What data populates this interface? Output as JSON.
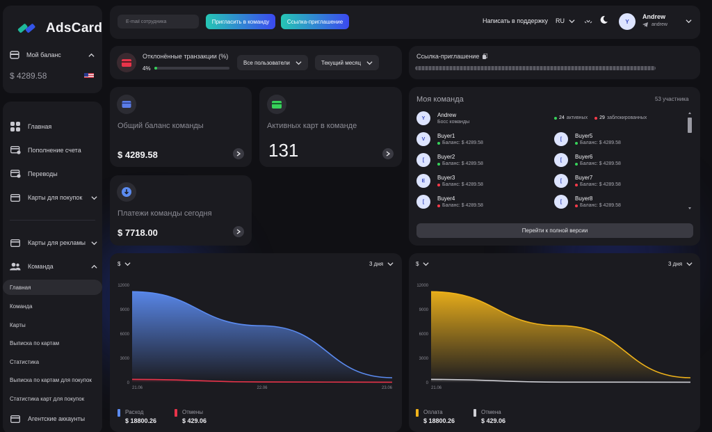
{
  "brand": {
    "name": "AdsCard"
  },
  "balance": {
    "label": "Мой баланс",
    "value": "$ 4289.58"
  },
  "nav": {
    "main": {
      "label": "Главная"
    },
    "topup": {
      "label": "Пополнение счета"
    },
    "transfers": {
      "label": "Переводы"
    },
    "cards_purchase": {
      "label": "Карты для покупок"
    },
    "cards_ads": {
      "label": "Карты для рекламы"
    },
    "team": {
      "label": "Команда"
    },
    "team_sub": [
      {
        "label": "Главная"
      },
      {
        "label": "Команда"
      },
      {
        "label": "Карты"
      },
      {
        "label": "Выписка по картам"
      },
      {
        "label": "Статистика"
      },
      {
        "label": "Выписка по картам для покупок"
      },
      {
        "label": "Статистика карт для покупок"
      }
    ],
    "agency": {
      "label": "Агентские аккаунты"
    }
  },
  "header": {
    "email_placeholder": "E-mail сотрудника",
    "invite_btn": "Пригласить в команду",
    "invite_link_btn": "Ссылка-приглашение",
    "support": "Написать в поддержку",
    "lang": "RU",
    "user": {
      "name": "Andrew",
      "login": "andrew",
      "initial": "Y"
    }
  },
  "declined": {
    "title": "Отклонённые транзакции (%)",
    "percent_text": "4%",
    "percent": 4,
    "filter_users": "Все пользователи",
    "filter_period": "Текущий месяц"
  },
  "invite_link": {
    "title": "Ссылка-приглашение"
  },
  "cards": {
    "team_balance": {
      "title": "Общий баланс команды",
      "value": "$ 4289.58"
    },
    "active_cards": {
      "title": "Активных карт в команде",
      "value": "131"
    },
    "payments_today": {
      "title": "Платежи команды сегодня",
      "value": "$ 7718.00"
    }
  },
  "team": {
    "title": "Моя команда",
    "count": "53 участника",
    "active_count": "24",
    "active_label": "активных",
    "blocked_count": "29",
    "blocked_label": "заблокированных",
    "owner": {
      "name": "Andrew",
      "role": "Босс команды",
      "initial": "Y"
    },
    "members": [
      {
        "name": "Buyer1",
        "balance": "Баланс: $ 4289.58",
        "initial": "V",
        "status": "active"
      },
      {
        "name": "Buyer5",
        "balance": "Баланс: $ 4289.58",
        "initial": "[",
        "status": "active"
      },
      {
        "name": "Buyer2",
        "balance": "Баланс: $ 4289.58",
        "initial": "[",
        "status": "active"
      },
      {
        "name": "Buyer6",
        "balance": "Баланс: $ 4289.58",
        "initial": "[",
        "status": "active"
      },
      {
        "name": "Buyer3",
        "balance": "Баланс: $ 4289.58",
        "initial": "E",
        "status": "blocked"
      },
      {
        "name": "Buyer7",
        "balance": "Баланс: $ 4289.58",
        "initial": "[",
        "status": "blocked"
      },
      {
        "name": "Buyer4",
        "balance": "Баланс: $ 4289.58",
        "initial": "[",
        "status": "blocked"
      },
      {
        "name": "Buyer8",
        "balance": "Баланс: $ 4289.58",
        "initial": "[",
        "status": "blocked"
      }
    ],
    "full_version_btn": "Перейти к полной версии"
  },
  "colors": {
    "accent_green": "#37d25a",
    "blocked_red": "#ff3b4a",
    "series_blue": "#5b8bf0",
    "series_red": "#e8344a",
    "series_gold": "#f0b31a",
    "series_white": "#cfcfd5"
  },
  "chart_data": [
    {
      "type": "area",
      "currency_selector": "$",
      "period_selector": "3 дня",
      "x": [
        "21.06",
        "22.06",
        "23.06"
      ],
      "ylim": [
        0,
        12000
      ],
      "yticks": [
        "0",
        "3000",
        "6000",
        "9000",
        "12000"
      ],
      "grid": false,
      "series": [
        {
          "name": "Расход",
          "total": "$ 18800.26",
          "color": "#5b8bf0",
          "values": [
            11200,
            7000,
            600
          ]
        },
        {
          "name": "Отмены",
          "total": "$ 429.06",
          "color": "#e8344a",
          "values": [
            400,
            80,
            50
          ]
        }
      ]
    },
    {
      "type": "area",
      "currency_selector": "$",
      "period_selector": "3 дня",
      "x": [
        "21.06",
        "",
        ""
      ],
      "ylim": [
        0,
        12000
      ],
      "yticks": [
        "0",
        "3000",
        "6000",
        "9000",
        "12000"
      ],
      "grid": false,
      "series": [
        {
          "name": "Оплата",
          "total": "$ 18800.26",
          "color": "#f0b31a",
          "values": [
            11200,
            7000,
            600
          ]
        },
        {
          "name": "Отмена",
          "total": "$ 429.06",
          "color": "#cfcfd5",
          "values": [
            400,
            60,
            50
          ]
        }
      ]
    }
  ]
}
